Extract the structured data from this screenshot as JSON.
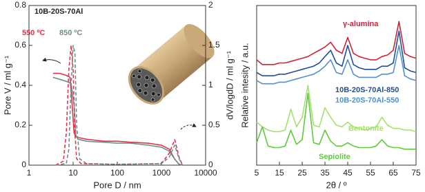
{
  "chart_data": [
    {
      "type": "line",
      "title": "10B-20S-70Al",
      "xlabel": "Pore D / nm",
      "ylabel": "Pore V / ml g⁻¹",
      "y2label": "dV/logdD / ml g⁻¹",
      "xscale": "log",
      "xlim": [
        1,
        10000
      ],
      "xticks": [
        1,
        10,
        100,
        1000,
        10000
      ],
      "ylim": [
        0,
        0.8
      ],
      "yticks": [
        0,
        0.2,
        0.4,
        0.6,
        0.8
      ],
      "y2lim": [
        0,
        2
      ],
      "y2ticks": [
        0,
        0.5,
        1,
        1.5,
        2
      ],
      "series": [
        {
          "name": "550 ºC",
          "color": "#e0334a",
          "linestyle": "solid",
          "x": [
            3.5,
            5,
            7,
            8.5,
            9.5,
            10.5,
            12,
            20,
            50,
            100,
            200,
            500,
            1000,
            1500,
            2000,
            2500,
            3000
          ],
          "values": [
            0.46,
            0.46,
            0.45,
            0.44,
            0.3,
            0.16,
            0.14,
            0.13,
            0.12,
            0.12,
            0.115,
            0.11,
            0.1,
            0.08,
            0.03,
            0.005,
            0
          ]
        },
        {
          "name": "850 ºC",
          "color": "#6f8d8c",
          "linestyle": "solid",
          "x": [
            3.5,
            5,
            7,
            9,
            10.5,
            11.5,
            13,
            20,
            50,
            100,
            200,
            500,
            1000,
            1500,
            2000,
            2500,
            3000
          ],
          "values": [
            0.44,
            0.43,
            0.42,
            0.41,
            0.3,
            0.15,
            0.13,
            0.12,
            0.115,
            0.11,
            0.11,
            0.1,
            0.09,
            0.07,
            0.03,
            0.005,
            0
          ]
        },
        {
          "color": "#e0334a",
          "linestyle": "dashed",
          "axis": "y2",
          "x": [
            4,
            6,
            7,
            8,
            9,
            10,
            11,
            12,
            15,
            100,
            1000,
            1500,
            2000,
            2500,
            3000
          ],
          "values": [
            0,
            0.05,
            0.4,
            1.2,
            1.5,
            1.2,
            0.4,
            0.08,
            0.02,
            0.01,
            0.02,
            0.15,
            0.32,
            0.1,
            0
          ]
        },
        {
          "color": "#6f8d8c",
          "linestyle": "dashed",
          "axis": "y2",
          "x": [
            4,
            7,
            8,
            9,
            10,
            11,
            12,
            14,
            20,
            100,
            1000,
            1500,
            2000,
            2500,
            3000
          ],
          "values": [
            0,
            0.02,
            0.2,
            1.0,
            1.5,
            1.4,
            0.5,
            0.08,
            0.02,
            0.01,
            0.02,
            0.1,
            0.25,
            0.08,
            0
          ]
        }
      ]
    },
    {
      "type": "line",
      "xlabel": "2θ / º",
      "ylabel": "Relative intesity / a.u.",
      "xlim": [
        5,
        75
      ],
      "xticks": [
        5,
        15,
        25,
        35,
        45,
        55,
        65,
        75
      ],
      "ylim": [
        0,
        100
      ],
      "x": [
        5,
        7.5,
        10,
        12.5,
        15,
        17.5,
        20,
        22.5,
        25,
        27.5,
        30,
        32.5,
        35,
        37.5,
        40,
        42.5,
        45,
        47.5,
        50,
        52.5,
        55,
        57.5,
        60,
        62.5,
        65,
        67.5,
        70,
        72.5,
        75
      ],
      "series": [
        {
          "name": "γ-alumina",
          "color": "#d1203a",
          "values": [
            66,
            63,
            63,
            63,
            64,
            64,
            65,
            66,
            67,
            68,
            70,
            72,
            74,
            77,
            72,
            70,
            80,
            70,
            68,
            67,
            66,
            66,
            68,
            69,
            72,
            90,
            70,
            68,
            67
          ]
        },
        {
          "name": "10B-20S-70Al-850",
          "color": "#1f4e9a",
          "values": [
            58,
            56,
            56,
            56,
            57,
            57,
            58,
            59,
            60,
            61,
            62,
            64,
            68,
            72,
            64,
            62,
            75,
            63,
            61,
            60,
            60,
            60,
            62,
            62,
            64,
            84,
            61,
            59,
            58
          ]
        },
        {
          "name": "10B-20S-70Al-550",
          "color": "#4f8fd0",
          "values": [
            53,
            51,
            51,
            51,
            52,
            52,
            53,
            54,
            55,
            56,
            57,
            59,
            62,
            66,
            58,
            57,
            66,
            57,
            55,
            55,
            55,
            55,
            57,
            57,
            58,
            75,
            56,
            54,
            53
          ]
        },
        {
          "name": "Bentonite",
          "color": "#a6e06e",
          "values": [
            27,
            24,
            22,
            21,
            21,
            22,
            35,
            24,
            30,
            50,
            25,
            24,
            36,
            30,
            25,
            24,
            27,
            24,
            23,
            22,
            23,
            24,
            30,
            25,
            23,
            23,
            22,
            22,
            21
          ]
        },
        {
          "name": "Sepiolite",
          "color": "#5ccc3a",
          "values": [
            14,
            24,
            12,
            11,
            11,
            12,
            22,
            13,
            16,
            45,
            14,
            13,
            22,
            15,
            12,
            12,
            14,
            12,
            11,
            11,
            11,
            12,
            16,
            12,
            11,
            11,
            10,
            10,
            10
          ]
        }
      ]
    }
  ]
}
